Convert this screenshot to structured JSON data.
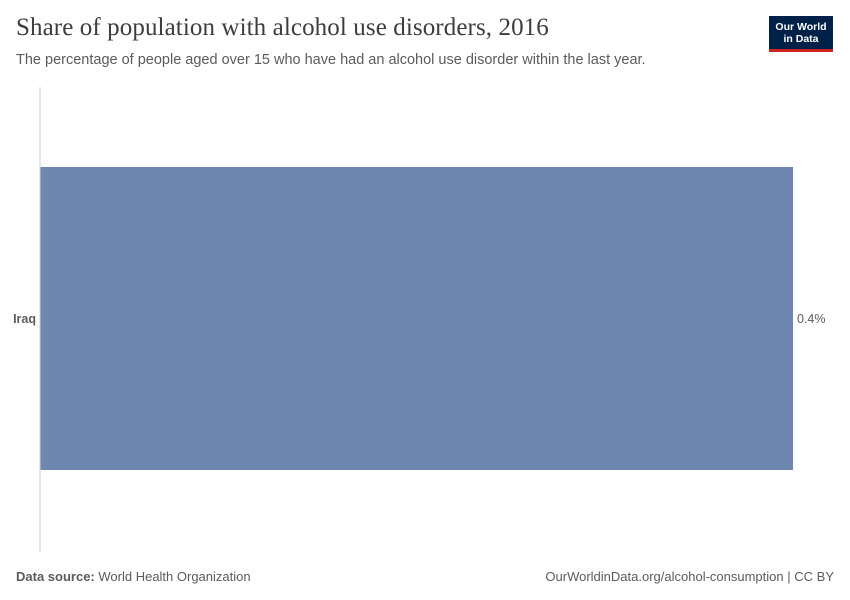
{
  "header": {
    "title": "Share of population with alcohol use disorders, 2016",
    "subtitle": "The percentage of people aged over 15 who have had an alcohol use disorder within the last year."
  },
  "logo": {
    "line1": "Our World",
    "line2": "in Data"
  },
  "footer": {
    "source_label": "Data source:",
    "source_value": "World Health Organization",
    "link_text": "OurWorldinData.org/alcohol-consumption",
    "separator": "|",
    "license": "CC BY"
  },
  "colors": {
    "bar": "#6f87ae",
    "axis": "#d0d0d0",
    "logo_bg": "#002147",
    "logo_accent": "#ce261e"
  },
  "chart_data": {
    "type": "bar",
    "orientation": "horizontal",
    "title": "Share of population with alcohol use disorders, 2016",
    "categories": [
      "Iraq"
    ],
    "values": [
      0.4
    ],
    "value_labels": [
      "0.4%"
    ],
    "unit": "%",
    "xlim": [
      0,
      0.4
    ],
    "xlabel": "",
    "ylabel": "",
    "grid": false,
    "legend": "none"
  }
}
